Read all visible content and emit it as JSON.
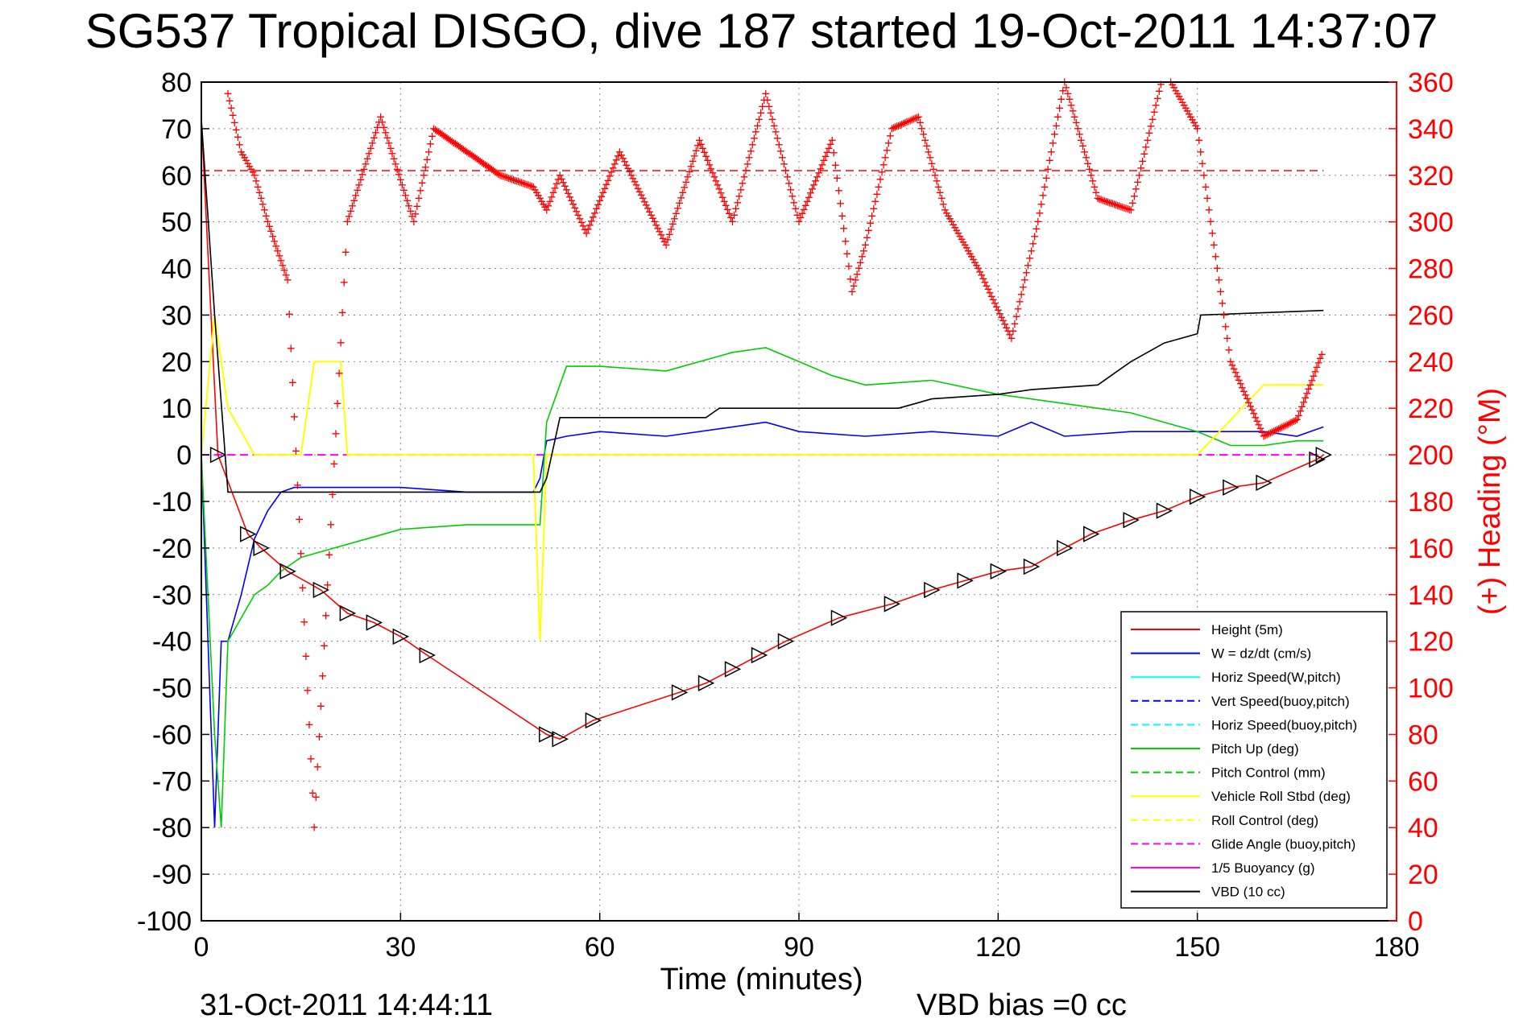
{
  "title": "SG537 Tropical DISGO, dive 187 started 19-Oct-2011 14:37:07",
  "footer": {
    "date": "31-Oct-2011 14:44:11",
    "vbd_bias": "VBD bias =0 cc"
  },
  "chart_data": {
    "type": "line",
    "xlabel": "Time (minutes)",
    "ylabel": "",
    "ylabel_right": "(+) Heading (°M)",
    "xlim": [
      0,
      180
    ],
    "ylim": [
      -100,
      80
    ],
    "ylim_right": [
      0,
      360
    ],
    "xticks": [
      "0",
      "30",
      "60",
      "90",
      "120",
      "150",
      "180"
    ],
    "yticks": [
      "80",
      "70",
      "60",
      "50",
      "40",
      "30",
      "20",
      "10",
      "0",
      "-10",
      "-20",
      "-30",
      "-40",
      "-50",
      "-60",
      "-70",
      "-80",
      "-90",
      "-100"
    ],
    "yticks_right": [
      "360",
      "340",
      "320",
      "300",
      "280",
      "260",
      "240",
      "220",
      "200",
      "180",
      "160",
      "140",
      "120",
      "100",
      "80",
      "60",
      "40",
      "20",
      "0"
    ],
    "grid": true,
    "legend_position": "bottom-right",
    "legend": [
      {
        "label": "Height (5m)",
        "color": "#ff0000",
        "dash": "solid"
      },
      {
        "label": "W = dz/dt (cm/s)",
        "color": "#0000ff",
        "dash": "solid"
      },
      {
        "label": "Horiz Speed(W,pitch)",
        "color": "#00ffff",
        "dash": "solid"
      },
      {
        "label": "Vert Speed(buoy,pitch)",
        "color": "#0000ff",
        "dash": "dashed"
      },
      {
        "label": "Horiz Speed(buoy,pitch)",
        "color": "#00ffff",
        "dash": "dashed"
      },
      {
        "label": "Pitch Up (deg)",
        "color": "#00cc00",
        "dash": "solid"
      },
      {
        "label": "Pitch Control (mm)",
        "color": "#00cc00",
        "dash": "dashed"
      },
      {
        "label": "Vehicle Roll Stbd (deg)",
        "color": "#ffff00",
        "dash": "solid"
      },
      {
        "label": "Roll Control (deg)",
        "color": "#ffff00",
        "dash": "dashed"
      },
      {
        "label": "Glide Angle (buoy,pitch)",
        "color": "#ff00ff",
        "dash": "dashed"
      },
      {
        "label": "1/5 Buoyancy (g)",
        "color": "#ff00ff",
        "dash": "solid"
      },
      {
        "label": "VBD (10 cc)",
        "color": "#000000",
        "dash": "solid"
      }
    ],
    "heading_reference": 322,
    "series": [
      {
        "name": "Height (5m)",
        "x": [
          0,
          2.5,
          7,
          9,
          13,
          18,
          22,
          26,
          30,
          34,
          52,
          54,
          59,
          72,
          76,
          80,
          84,
          88,
          96,
          104,
          110,
          115,
          120,
          125,
          130,
          134,
          140,
          145,
          150,
          155,
          160,
          168,
          169
        ],
        "y": [
          72,
          0,
          -17,
          -20,
          -25,
          -29,
          -34,
          -36,
          -39,
          -43,
          -60,
          -61,
          -57,
          -51,
          -49,
          -46,
          -43,
          -40,
          -35,
          -32,
          -29,
          -27,
          -25,
          -24,
          -20,
          -17,
          -14,
          -12,
          -9,
          -7,
          -6,
          -1,
          0
        ]
      },
      {
        "name": "W = dz/dt (cm/s)",
        "x": [
          0,
          2,
          3,
          4,
          6,
          8,
          10,
          12,
          14,
          20,
          30,
          40,
          50,
          51,
          52,
          55,
          60,
          70,
          80,
          85,
          90,
          100,
          110,
          120,
          125,
          130,
          140,
          150,
          160,
          165,
          169
        ],
        "y": [
          0,
          -80,
          -40,
          -40,
          -30,
          -18,
          -12,
          -8,
          -7,
          -7,
          -7,
          -8,
          -8,
          -5,
          3,
          4,
          5,
          4,
          6,
          7,
          5,
          4,
          5,
          4,
          7,
          4,
          5,
          5,
          5,
          4,
          6
        ]
      },
      {
        "name": "Pitch Up (deg)",
        "x": [
          0,
          2,
          3,
          4,
          6,
          8,
          10,
          12,
          15,
          20,
          25,
          30,
          40,
          51,
          52,
          55,
          60,
          70,
          80,
          85,
          90,
          95,
          100,
          110,
          120,
          130,
          140,
          150,
          155,
          160,
          165,
          169
        ],
        "y": [
          0,
          -60,
          -80,
          -40,
          -35,
          -30,
          -28,
          -25,
          -22,
          -20,
          -18,
          -16,
          -15,
          -15,
          7,
          19,
          19,
          18,
          22,
          23,
          20,
          17,
          15,
          16,
          13,
          11,
          9,
          5,
          2,
          2,
          3,
          3
        ]
      },
      {
        "name": "Vehicle Roll Stbd (deg)",
        "x": [
          0,
          2,
          4,
          8,
          15,
          17,
          18,
          21,
          22,
          30,
          50,
          51,
          52,
          60,
          70,
          80,
          90,
          100,
          110,
          120,
          130,
          140,
          150,
          160,
          169
        ],
        "y": [
          0,
          30,
          10,
          0,
          0,
          20,
          20,
          20,
          0,
          0,
          0,
          -40,
          0,
          0,
          0,
          0,
          0,
          0,
          0,
          0,
          0,
          0,
          0,
          15,
          15
        ]
      },
      {
        "name": "VBD (10 cc)",
        "x": [
          0,
          2,
          4,
          51,
          52,
          54,
          60,
          76,
          77,
          78,
          100,
          105,
          110,
          120,
          125,
          135,
          140,
          145,
          150,
          150.5,
          169
        ],
        "y": [
          72,
          30,
          -8,
          -8,
          -5,
          8,
          8,
          8,
          9,
          10,
          10,
          10,
          12,
          13,
          14,
          15,
          20,
          24,
          26,
          30,
          31
        ]
      }
    ],
    "heading_series": {
      "name": "(+) Heading",
      "x": [
        4,
        6,
        8,
        10,
        13,
        17,
        22,
        27,
        32,
        35,
        40,
        45,
        50,
        52,
        54,
        58,
        63,
        70,
        75,
        80,
        85,
        90,
        95,
        98,
        100,
        104,
        108,
        112,
        117,
        122,
        126,
        130,
        135,
        140,
        145,
        150,
        155,
        160,
        165,
        169
      ],
      "y": [
        355,
        330,
        320,
        300,
        275,
        40,
        300,
        345,
        300,
        340,
        330,
        320,
        315,
        305,
        320,
        295,
        330,
        290,
        335,
        300,
        355,
        300,
        335,
        270,
        290,
        340,
        345,
        305,
        280,
        250,
        300,
        360,
        310,
        305,
        365,
        340,
        240,
        208,
        215,
        245
      ]
    }
  }
}
